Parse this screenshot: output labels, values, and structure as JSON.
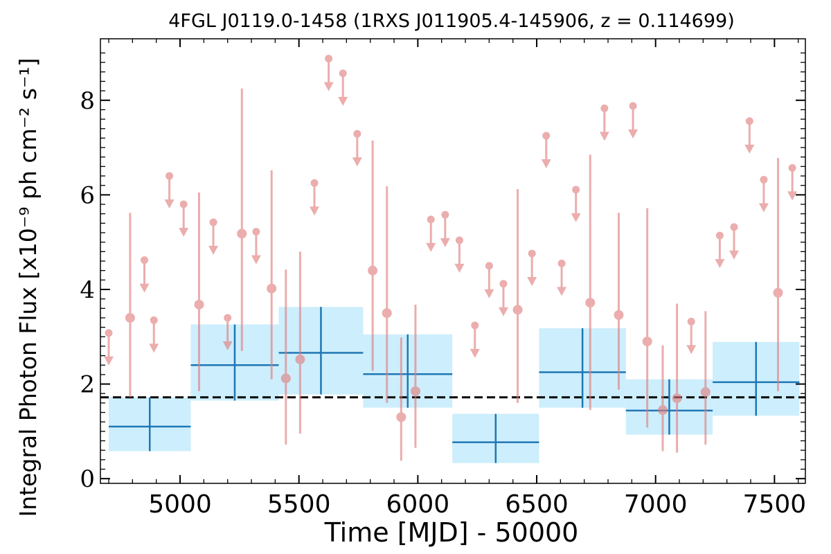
{
  "chart_data": {
    "type": "scatter",
    "title": "4FGL J0119.0-1458 (1RXS J011905.4-145906, z = 0.114699)",
    "xlabel": "Time [MJD] - 50000",
    "ylabel": "Integral Photon Flux [x10⁻⁹ ph cm⁻² s⁻¹]",
    "xlim": [
      4665,
      7630
    ],
    "ylim": [
      -0.1,
      9.3
    ],
    "x_ticks": [
      5000,
      5500,
      6000,
      6500,
      7000,
      7500
    ],
    "y_ticks": [
      0,
      2,
      4,
      6,
      8
    ],
    "mean_flux": 1.72,
    "colors": {
      "point": "#e07b7b",
      "bin_line": "#1f77b4",
      "bin_fill": "#cdeefc",
      "mean_line": "#000000"
    },
    "points": [
      {
        "x": 4700,
        "y": 3.08,
        "ul": true
      },
      {
        "x": 4790,
        "y": 3.4,
        "lo": 1.72,
        "hi": 5.62
      },
      {
        "x": 4850,
        "y": 4.62,
        "ul": true
      },
      {
        "x": 4890,
        "y": 3.35,
        "ul": true
      },
      {
        "x": 4955,
        "y": 6.4,
        "ul": true
      },
      {
        "x": 5015,
        "y": 5.8,
        "ul": true
      },
      {
        "x": 5080,
        "y": 3.68,
        "lo": 1.85,
        "hi": 6.05
      },
      {
        "x": 5140,
        "y": 5.42,
        "ul": true
      },
      {
        "x": 5200,
        "y": 3.4,
        "ul": true
      },
      {
        "x": 5260,
        "y": 5.18,
        "lo": 2.7,
        "hi": 8.25
      },
      {
        "x": 5320,
        "y": 5.22,
        "ul": true
      },
      {
        "x": 5385,
        "y": 4.02,
        "lo": 2.1,
        "hi": 6.52
      },
      {
        "x": 5445,
        "y": 2.12,
        "lo": 0.72,
        "hi": 4.42
      },
      {
        "x": 5505,
        "y": 2.52,
        "lo": 0.95,
        "hi": 4.8
      },
      {
        "x": 5565,
        "y": 6.25,
        "ul": true
      },
      {
        "x": 5625,
        "y": 8.88,
        "ul": true
      },
      {
        "x": 5685,
        "y": 8.57,
        "ul": true
      },
      {
        "x": 5745,
        "y": 7.29,
        "ul": true
      },
      {
        "x": 5810,
        "y": 4.4,
        "lo": 2.28,
        "hi": 7.15
      },
      {
        "x": 5870,
        "y": 3.5,
        "lo": 1.6,
        "hi": 6.18
      },
      {
        "x": 5930,
        "y": 1.3,
        "lo": 0.38,
        "hi": 2.98
      },
      {
        "x": 5990,
        "y": 1.85,
        "lo": 0.65,
        "hi": 3.68
      },
      {
        "x": 6055,
        "y": 5.48,
        "ul": true
      },
      {
        "x": 6115,
        "y": 5.58,
        "ul": true
      },
      {
        "x": 6175,
        "y": 5.04,
        "ul": true
      },
      {
        "x": 6240,
        "y": 3.24,
        "ul": true
      },
      {
        "x": 6300,
        "y": 4.5,
        "ul": true
      },
      {
        "x": 6360,
        "y": 4.12,
        "ul": true
      },
      {
        "x": 6420,
        "y": 3.57,
        "lo": 1.6,
        "hi": 6.12
      },
      {
        "x": 6480,
        "y": 4.76,
        "ul": true
      },
      {
        "x": 6540,
        "y": 7.25,
        "ul": true
      },
      {
        "x": 6605,
        "y": 4.55,
        "ul": true
      },
      {
        "x": 6665,
        "y": 6.11,
        "ul": true
      },
      {
        "x": 6725,
        "y": 3.72,
        "lo": 1.45,
        "hi": 6.85
      },
      {
        "x": 6785,
        "y": 7.83,
        "ul": true
      },
      {
        "x": 6845,
        "y": 3.46,
        "lo": 1.88,
        "hi": 5.62
      },
      {
        "x": 6905,
        "y": 7.88,
        "ul": true
      },
      {
        "x": 6965,
        "y": 2.9,
        "lo": 1.08,
        "hi": 5.72
      },
      {
        "x": 7030,
        "y": 1.45,
        "lo": 0.58,
        "hi": 2.82
      },
      {
        "x": 7090,
        "y": 1.7,
        "lo": 0.55,
        "hi": 3.7
      },
      {
        "x": 7150,
        "y": 3.32,
        "ul": true
      },
      {
        "x": 7210,
        "y": 1.83,
        "lo": 0.72,
        "hi": 3.54
      },
      {
        "x": 7270,
        "y": 5.14,
        "ul": true
      },
      {
        "x": 7330,
        "y": 5.32,
        "ul": true
      },
      {
        "x": 7395,
        "y": 7.56,
        "ul": true
      },
      {
        "x": 7455,
        "y": 6.32,
        "ul": true
      },
      {
        "x": 7515,
        "y": 3.93,
        "lo": 1.85,
        "hi": 6.78
      },
      {
        "x": 7575,
        "y": 6.57,
        "ul": true
      }
    ],
    "bins": [
      {
        "x0": 4700,
        "x1": 5045,
        "y": 1.1,
        "lo": 0.58,
        "hi": 1.72
      },
      {
        "x0": 5045,
        "x1": 5415,
        "y": 2.4,
        "lo": 1.65,
        "hi": 3.26
      },
      {
        "x0": 5415,
        "x1": 5770,
        "y": 2.66,
        "lo": 1.78,
        "hi": 3.63
      },
      {
        "x0": 5770,
        "x1": 6145,
        "y": 2.21,
        "lo": 1.5,
        "hi": 3.05
      },
      {
        "x0": 6145,
        "x1": 6510,
        "y": 0.77,
        "lo": 0.33,
        "hi": 1.37
      },
      {
        "x0": 6510,
        "x1": 6875,
        "y": 2.25,
        "lo": 1.5,
        "hi": 3.18
      },
      {
        "x0": 6875,
        "x1": 7240,
        "y": 1.44,
        "lo": 0.93,
        "hi": 2.1
      },
      {
        "x0": 7240,
        "x1": 7605,
        "y": 2.04,
        "lo": 1.33,
        "hi": 2.89
      }
    ]
  }
}
